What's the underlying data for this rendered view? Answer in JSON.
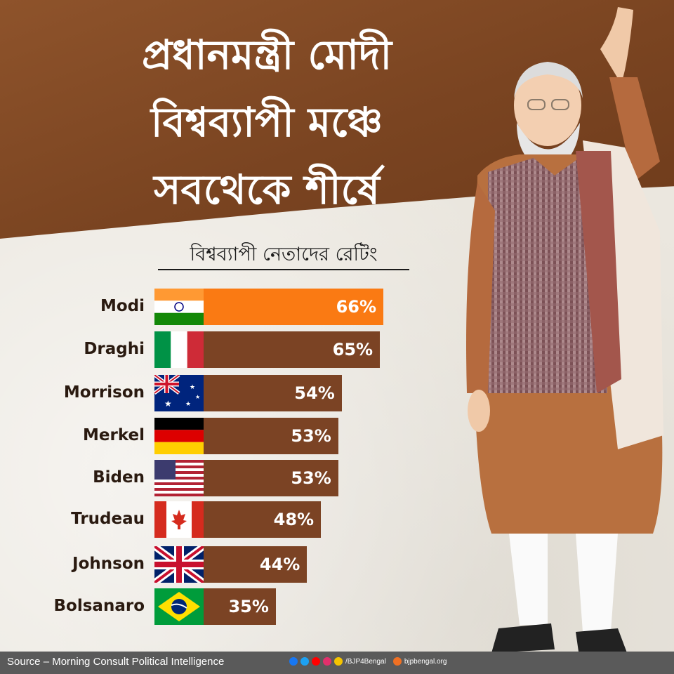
{
  "headline": {
    "lines": [
      "প্রধানমন্ত্রী মোদী",
      "বিশ্বব্যাপী মঞ্চে",
      "সবথেকে শীর্ষে"
    ]
  },
  "chart_data": {
    "type": "bar",
    "orientation": "horizontal",
    "title": "বিশ্বব্যাপী নেতাদের রেটিং",
    "categories": [
      "Modi",
      "Draghi",
      "Morrison",
      "Merkel",
      "Biden",
      "Trudeau",
      "Johnson",
      "Bolsanaro"
    ],
    "values": [
      66,
      65,
      54,
      53,
      53,
      48,
      44,
      35
    ],
    "value_labels": [
      "66%",
      "65%",
      "54%",
      "53%",
      "53%",
      "48%",
      "44%",
      "35%"
    ],
    "flags": [
      "india-flag-icon",
      "italy-flag-icon",
      "australia-flag-icon",
      "germany-flag-icon",
      "usa-flag-icon",
      "canada-flag-icon",
      "uk-flag-icon",
      "brazil-flag-icon"
    ],
    "highlight_color": "#fa7a13",
    "bar_color": "#7b4324",
    "grid": false,
    "legend": "none"
  },
  "footer": {
    "source": "Source – Morning Consult Political Intelligence",
    "handle": "/BJP4Bengal",
    "website": "bjpbengal.org"
  }
}
